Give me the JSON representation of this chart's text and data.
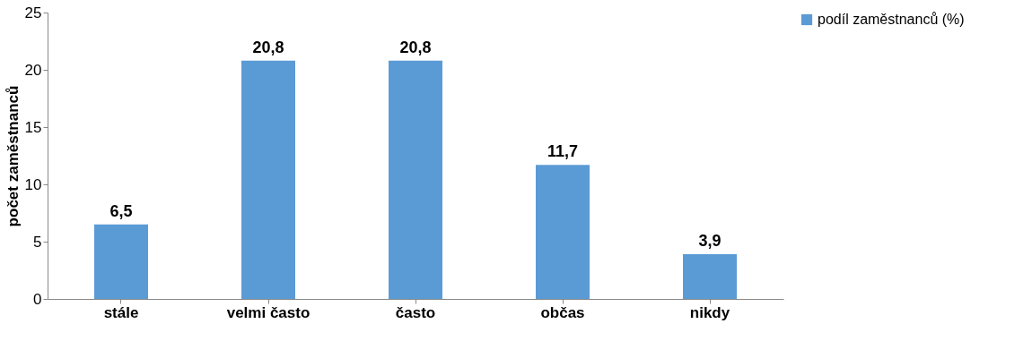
{
  "chart_data": {
    "type": "bar",
    "categories": [
      "stále",
      "velmi často",
      "často",
      "občas",
      "nikdy"
    ],
    "series": [
      {
        "name": "podíl zaměstnanců (%)",
        "color": "#5b9bd5",
        "values": [
          6.5,
          20.8,
          20.8,
          11.7,
          3.9
        ],
        "value_labels": [
          "6,5",
          "20,8",
          "20,8",
          "11,7",
          "3,9"
        ]
      }
    ],
    "ylabel": "počet zaměstnanců",
    "ylim": [
      0,
      25
    ],
    "yticks": [
      0,
      5,
      10,
      15,
      20,
      25
    ],
    "grid": false,
    "legend": "right"
  }
}
